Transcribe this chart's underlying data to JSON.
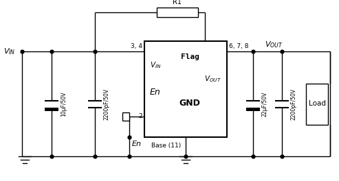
{
  "bg_color": "#ffffff",
  "line_color": "#000000",
  "lw": 1.0,
  "dot_size": 3.5,
  "vin_label": "V_{IN}",
  "vout_label": "V_{OUT}",
  "r1_label": "R1",
  "flag_label": "Flag",
  "en_label": "En",
  "gnd_label": "GND",
  "base_label": "Base (11)",
  "pin34_label": "3, 4",
  "pin2_label": "2",
  "pin678_label": "6, 7, 8",
  "cap1_label": "10μF/50V",
  "cap2_label": "2200pF/50V",
  "cap3_label": "22μF/50V",
  "cap4_label": "2200pF/50V",
  "load_label": "Load"
}
